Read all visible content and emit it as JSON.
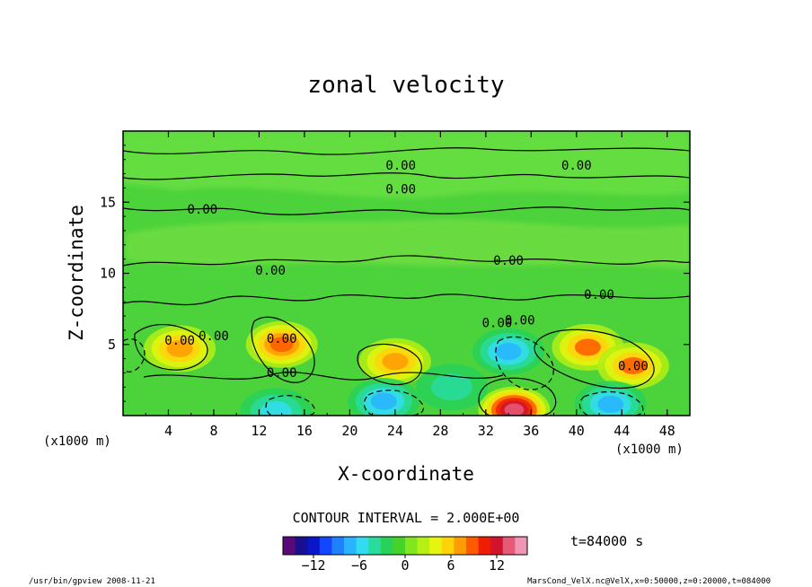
{
  "chart_data": {
    "type": "heatmap",
    "title": "zonal velocity",
    "xlabel": "X-coordinate",
    "ylabel": "Z-coordinate",
    "x_unit": "(x1000 m)",
    "y_unit": "(x1000 m)",
    "xlim": [
      0,
      50
    ],
    "ylim": [
      0,
      20
    ],
    "x_ticks": [
      "4",
      "8",
      "12",
      "16",
      "20",
      "24",
      "28",
      "32",
      "36",
      "40",
      "44",
      "48"
    ],
    "y_ticks": [
      "5",
      "10",
      "15"
    ],
    "contour_interval_label": "CONTOUR INTERVAL = 2.000E+00",
    "contour_labels": [
      "0.00",
      "0.00",
      "0.00",
      "0.00",
      "0.00",
      "0.00",
      "0.00",
      "0.00",
      "0.00",
      "0.00",
      "0.00",
      "0.00",
      "0.00",
      "0.00"
    ],
    "colorbar_ticks": [
      "−12",
      "−6",
      "0",
      "6",
      "12"
    ],
    "colorbar_range": [
      -16,
      16
    ],
    "time_label": "t=84000 s",
    "features": [
      {
        "x": 5,
        "z": 4.7,
        "value": 7
      },
      {
        "x": 14,
        "z": 5.0,
        "value": 9
      },
      {
        "x": 24,
        "z": 3.8,
        "value": 7
      },
      {
        "x": 34.5,
        "z": 0.4,
        "value": 14
      },
      {
        "x": 41,
        "z": 4.8,
        "value": 8
      },
      {
        "x": 45,
        "z": 3.5,
        "value": 8
      },
      {
        "x": 34,
        "z": 4.5,
        "value": -7
      },
      {
        "x": 23,
        "z": 1.0,
        "value": -8
      },
      {
        "x": 43,
        "z": 0.8,
        "value": -8
      },
      {
        "x": 13.5,
        "z": 0.3,
        "value": -6
      },
      {
        "x": 29,
        "z": 2.0,
        "value": -4
      }
    ]
  },
  "footer": {
    "program": "/usr/bin/gpview   2008-11-21",
    "source": "MarsCond_VelX.nc@VelX,x=0:50000,z=0:20000,t=084000"
  },
  "colors": {
    "colorbar": [
      "#5a0a78",
      "#18108e",
      "#0a16c8",
      "#1446ff",
      "#1e82ff",
      "#28b4ff",
      "#32dcf0",
      "#28dca0",
      "#28d25a",
      "#46d228",
      "#82e61e",
      "#b4f014",
      "#e6f50f",
      "#ffd20a",
      "#ff9b05",
      "#ff5a00",
      "#f01e00",
      "#d2142d",
      "#e65a78",
      "#f096b4"
    ]
  }
}
